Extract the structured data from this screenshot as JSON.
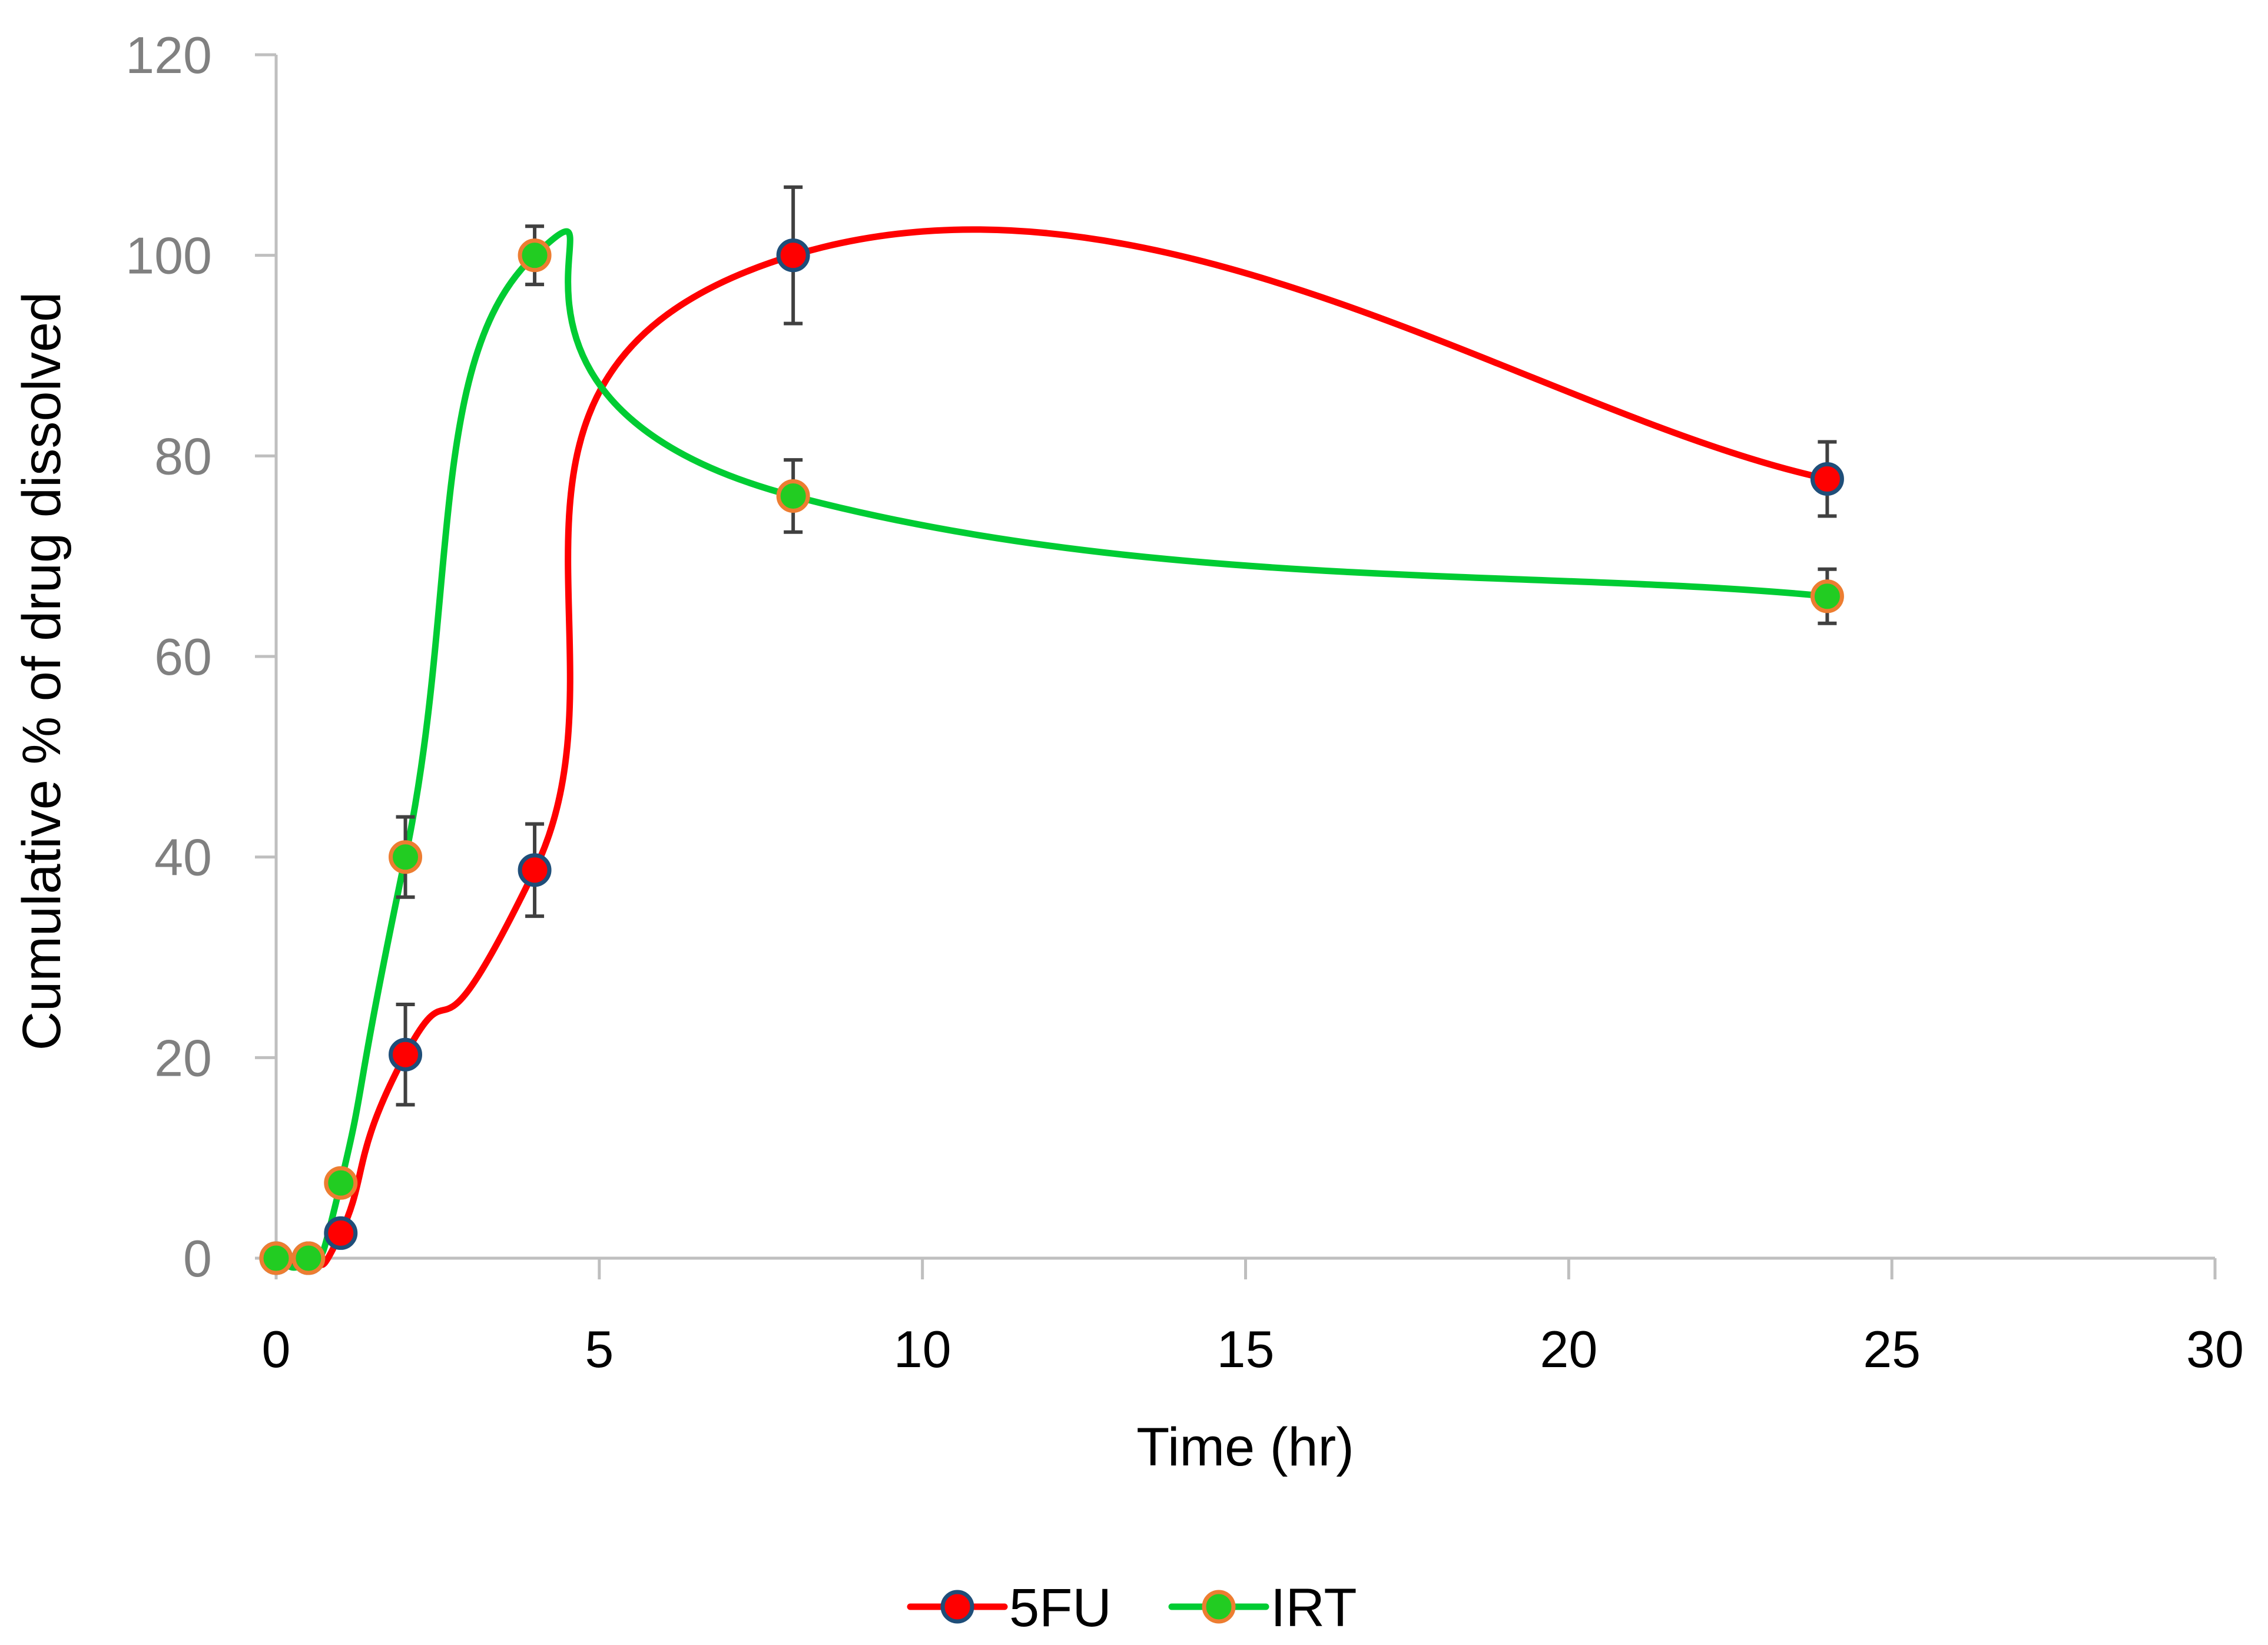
{
  "chart_data": {
    "type": "line",
    "title": "",
    "xlabel": "Time (hr)",
    "ylabel": "Cumulative % of drug dissolved",
    "xlim": [
      0,
      30
    ],
    "ylim": [
      0,
      120
    ],
    "xticks": [
      0,
      5,
      10,
      15,
      20,
      25,
      30
    ],
    "yticks": [
      0,
      20,
      40,
      60,
      80,
      100,
      120
    ],
    "grid": false,
    "smooth": true,
    "legend_position": "bottom",
    "series": [
      {
        "name": "5FU",
        "line_color": "#ff0000",
        "marker_fill": "#ff0000",
        "marker_edge": "#1f4e79",
        "x": [
          0,
          0.5,
          1,
          2,
          4,
          8,
          24
        ],
        "y": [
          0,
          0,
          2.5,
          20.3,
          38.7,
          100,
          77.7
        ],
        "error": [
          0,
          0,
          0,
          5.0,
          4.6,
          6.8,
          3.7
        ]
      },
      {
        "name": "IRT",
        "line_color": "#00cc33",
        "marker_fill": "#22cc22",
        "marker_edge": "#ed7d31",
        "x": [
          0,
          0.5,
          1,
          2,
          4,
          8,
          24
        ],
        "y": [
          0,
          0,
          7.5,
          40,
          100,
          76,
          66
        ],
        "error": [
          0,
          0,
          1.2,
          4.0,
          2.9,
          3.6,
          2.7
        ]
      }
    ]
  }
}
